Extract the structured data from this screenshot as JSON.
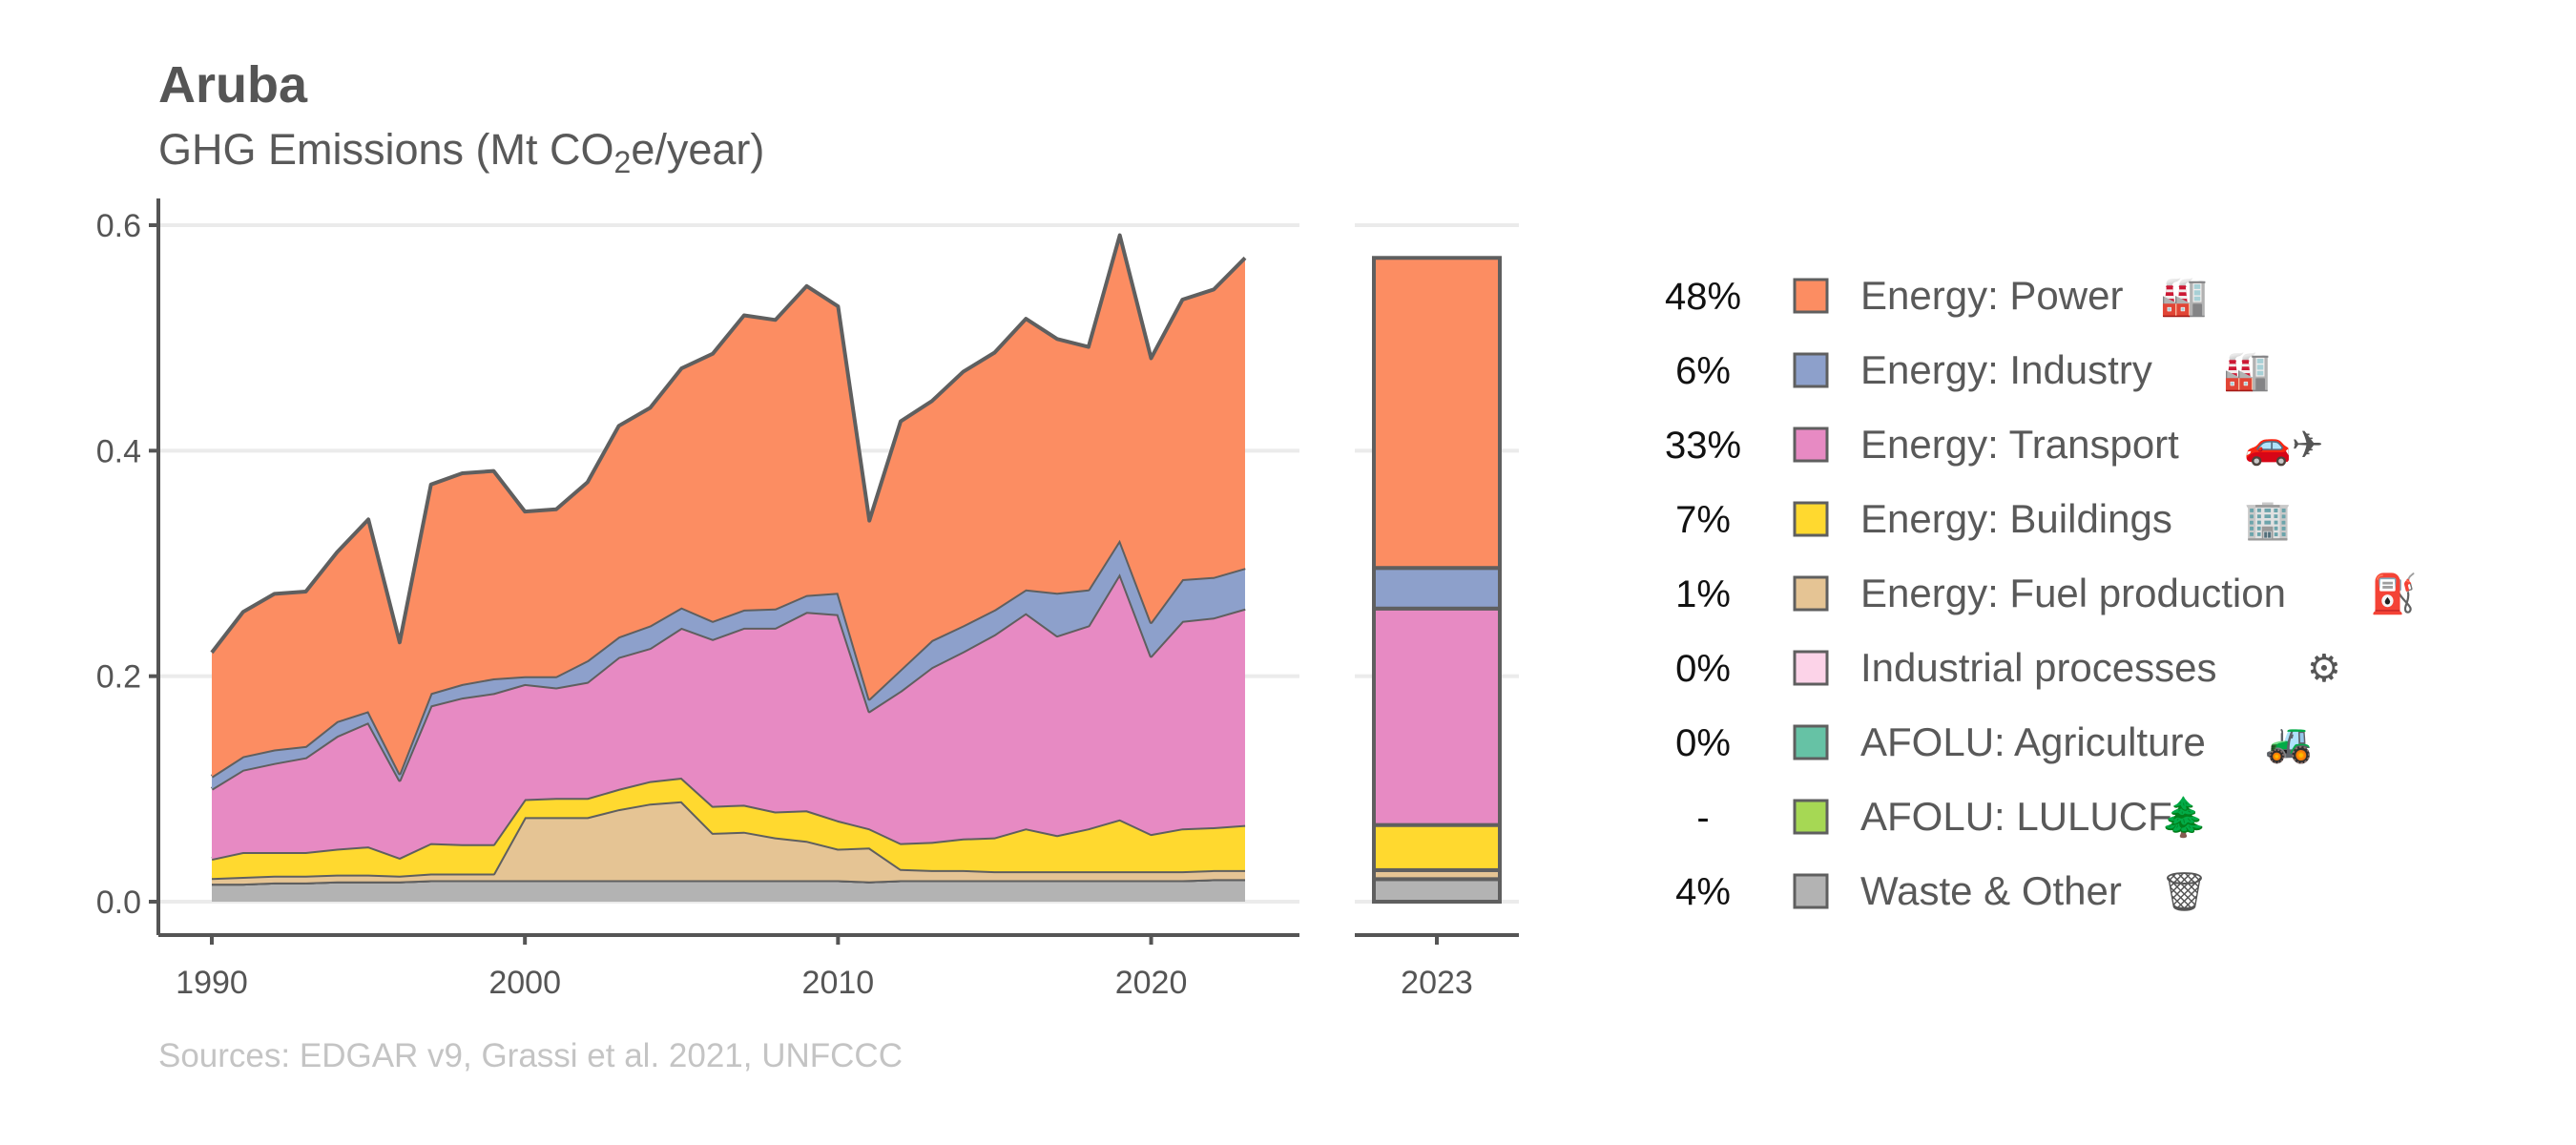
{
  "title": "Aruba",
  "subtitle": {
    "prefix": "GHG Emissions (Mt CO",
    "sub": "2",
    "suffix": "e/year)"
  },
  "source": "Sources: EDGAR v9, Grassi et al. 2021, UNFCCC",
  "chart_data": {
    "type": "area",
    "stacked": true,
    "x": [
      1990,
      1991,
      1992,
      1993,
      1994,
      1995,
      1996,
      1997,
      1998,
      1999,
      2000,
      2001,
      2002,
      2003,
      2004,
      2005,
      2006,
      2007,
      2008,
      2009,
      2010,
      2011,
      2012,
      2013,
      2014,
      2015,
      2016,
      2017,
      2018,
      2019,
      2020,
      2021,
      2022,
      2023
    ],
    "xticks": [
      1990,
      2000,
      2010,
      2020
    ],
    "ylim": [
      0,
      0.62
    ],
    "yticks": [
      "0.0",
      "0.2",
      "0.4",
      "0.6"
    ],
    "grid": true,
    "series": [
      {
        "name": "Waste & Other",
        "color": "#b3b3b3",
        "values": [
          0.016,
          0.016,
          0.017,
          0.017,
          0.018,
          0.018,
          0.018,
          0.019,
          0.019,
          0.019,
          0.019,
          0.019,
          0.019,
          0.019,
          0.019,
          0.019,
          0.019,
          0.019,
          0.019,
          0.019,
          0.019,
          0.018,
          0.019,
          0.019,
          0.019,
          0.019,
          0.019,
          0.019,
          0.019,
          0.019,
          0.019,
          0.019,
          0.02,
          0.02
        ]
      },
      {
        "name": "AFOLU: LULUCF",
        "color": "#a6d854",
        "values": [
          0,
          0,
          0,
          0,
          0,
          0,
          0,
          0,
          0,
          0,
          0,
          0,
          0,
          0,
          0,
          0,
          0,
          0,
          0,
          0,
          0,
          0,
          0,
          0,
          0,
          0,
          0,
          0,
          0,
          0,
          0,
          0,
          0,
          0
        ]
      },
      {
        "name": "AFOLU: Agriculture",
        "color": "#66c2a5",
        "values": [
          0,
          0,
          0,
          0,
          0,
          0,
          0,
          0,
          0,
          0,
          0,
          0,
          0,
          0,
          0,
          0,
          0,
          0,
          0,
          0,
          0,
          0,
          0,
          0,
          0,
          0,
          0,
          0,
          0,
          0,
          0,
          0,
          0,
          0
        ]
      },
      {
        "name": "Industrial processes",
        "color": "#fcd3e8",
        "values": [
          0,
          0,
          0,
          0,
          0,
          0,
          0,
          0,
          0,
          0,
          0,
          0,
          0,
          0,
          0,
          0,
          0,
          0,
          0,
          0,
          0,
          0,
          0,
          0,
          0,
          0,
          0,
          0,
          0,
          0,
          0,
          0,
          0,
          0
        ]
      },
      {
        "name": "Energy: Fuel production",
        "color": "#e5c494",
        "values": [
          0.005,
          0.006,
          0.006,
          0.006,
          0.006,
          0.006,
          0.005,
          0.006,
          0.006,
          0.006,
          0.056,
          0.056,
          0.056,
          0.063,
          0.068,
          0.07,
          0.042,
          0.043,
          0.038,
          0.035,
          0.028,
          0.03,
          0.01,
          0.009,
          0.009,
          0.008,
          0.008,
          0.008,
          0.008,
          0.008,
          0.008,
          0.008,
          0.008,
          0.008
        ]
      },
      {
        "name": "Energy: Buildings",
        "color": "#ffd92f",
        "values": [
          0.017,
          0.022,
          0.021,
          0.021,
          0.023,
          0.025,
          0.016,
          0.027,
          0.026,
          0.026,
          0.016,
          0.017,
          0.017,
          0.018,
          0.02,
          0.021,
          0.024,
          0.024,
          0.023,
          0.027,
          0.025,
          0.017,
          0.023,
          0.025,
          0.028,
          0.03,
          0.038,
          0.032,
          0.038,
          0.046,
          0.033,
          0.038,
          0.038,
          0.04
        ]
      },
      {
        "name": "Energy: Transport",
        "color": "#e78ac3",
        "values": [
          0.062,
          0.073,
          0.079,
          0.084,
          0.1,
          0.11,
          0.069,
          0.122,
          0.13,
          0.134,
          0.102,
          0.098,
          0.103,
          0.117,
          0.118,
          0.133,
          0.148,
          0.157,
          0.163,
          0.176,
          0.183,
          0.104,
          0.135,
          0.155,
          0.166,
          0.18,
          0.191,
          0.177,
          0.18,
          0.218,
          0.158,
          0.184,
          0.186,
          0.192
        ]
      },
      {
        "name": "Energy: Industry",
        "color": "#8da0cb",
        "values": [
          0.011,
          0.012,
          0.012,
          0.01,
          0.013,
          0.01,
          0.006,
          0.011,
          0.012,
          0.013,
          0.007,
          0.01,
          0.019,
          0.018,
          0.02,
          0.018,
          0.016,
          0.016,
          0.017,
          0.015,
          0.019,
          0.011,
          0.019,
          0.024,
          0.023,
          0.022,
          0.021,
          0.038,
          0.032,
          0.03,
          0.03,
          0.037,
          0.036,
          0.036
        ]
      },
      {
        "name": "Energy: Power",
        "color": "#fc8d62",
        "values": [
          0.11,
          0.128,
          0.138,
          0.137,
          0.15,
          0.17,
          0.116,
          0.185,
          0.187,
          0.184,
          0.146,
          0.148,
          0.158,
          0.187,
          0.193,
          0.212,
          0.237,
          0.261,
          0.256,
          0.274,
          0.254,
          0.158,
          0.22,
          0.212,
          0.225,
          0.228,
          0.24,
          0.225,
          0.215,
          0.27,
          0.234,
          0.248,
          0.255,
          0.275
        ]
      }
    ],
    "bar_year": "2023",
    "legend": [
      {
        "pct": "48%",
        "label": "Energy: Power",
        "color": "#fc8d62",
        "icon": "power-plant-icon"
      },
      {
        "pct": "6%",
        "label": "Energy: Industry",
        "color": "#8da0cb",
        "icon": "factory-icon"
      },
      {
        "pct": "33%",
        "label": "Energy: Transport",
        "color": "#e78ac3",
        "icon": "car-plane-icon"
      },
      {
        "pct": "7%",
        "label": "Energy: Buildings",
        "color": "#ffd92f",
        "icon": "buildings-icon"
      },
      {
        "pct": "1%",
        "label": "Energy: Fuel production",
        "color": "#e5c494",
        "icon": "oil-rig-icon"
      },
      {
        "pct": "0%",
        "label": "Industrial processes",
        "color": "#fcd3e8",
        "icon": "cement-mixer-icon"
      },
      {
        "pct": "0%",
        "label": "AFOLU: Agriculture",
        "color": "#66c2a5",
        "icon": "tractor-icon"
      },
      {
        "pct": "-",
        "label": "AFOLU: LULUCF",
        "color": "#a6d854",
        "icon": "trees-icon"
      },
      {
        "pct": "4%",
        "label": "Waste & Other",
        "color": "#b3b3b3",
        "icon": "trash-icon"
      }
    ]
  }
}
